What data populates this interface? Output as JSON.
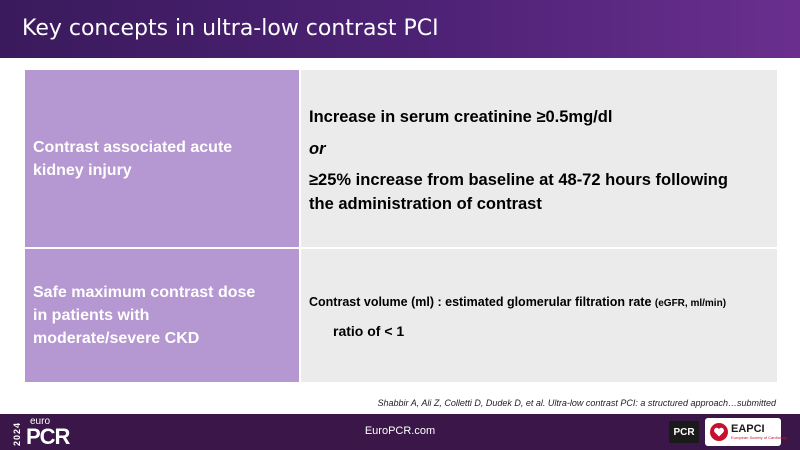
{
  "title": "Key concepts in ultra-low contrast PCI",
  "rows": [
    {
      "term": "Contrast associated acute kidney injury",
      "def_line1": "Increase in serum creatinine ≥0.5mg/dl",
      "def_or": "or",
      "def_line3a": "≥25% increase from baseline at 48-72 hours following",
      "def_line3b": "the administration of contrast"
    },
    {
      "term_l1": "Safe maximum contrast dose",
      "term_l2": "in patients with",
      "term_l3": "moderate/severe CKD",
      "formula_main": "Contrast volume (ml)  : estimated glomerular filtration rate ",
      "formula_unit": "(eGFR, ml/min)",
      "ratio": "ratio of < 1"
    }
  ],
  "citation": "Shabbir A, Ali Z, Colletti D, Dudek D, et al. Ultra-low contrast PCI: a structured approach…submitted",
  "footer": {
    "logo_year": "2024",
    "logo_euro": "euro",
    "logo_pcr": "PCR",
    "site": "EuroPCR.com",
    "pcr_badge": "PCR",
    "eapci": "EAPCI",
    "eapci_sub": "European Society of Cardiology",
    "heart_icon": "heart-icon"
  },
  "colors": {
    "header": "#4e2276",
    "term_cell": "#b597d1",
    "def_cell": "#ebebeb",
    "footer": "#3a1748"
  }
}
